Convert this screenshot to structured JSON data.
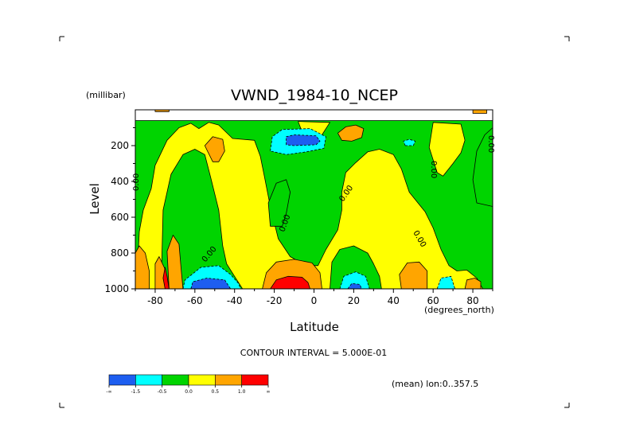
{
  "chart_data": {
    "type": "heatmap",
    "title": "VWND_1984-10_NCEP",
    "xlabel": "Latitude",
    "ylabel": "Level",
    "y_units": "(millibar)",
    "x_units": "(degrees_north)",
    "x_ticks": [
      "-80",
      "-60",
      "-40",
      "-20",
      "0",
      "20",
      "40",
      "60",
      "80"
    ],
    "y_ticks": [
      "200",
      "400",
      "600",
      "800",
      "1000"
    ],
    "xlim": [
      -90,
      90
    ],
    "ylim": [
      1000,
      0
    ],
    "contour_interval_text": "CONTOUR INTERVAL = 5.000E-01",
    "mean_text": "(mean) lon:0..357.5",
    "contour_labels": [
      "0.00",
      "0.00",
      "0.00",
      "0.00",
      "0.00",
      "0.00",
      "0.00",
      "0.00"
    ],
    "colorbar": {
      "colors": [
        "#1d5ef0",
        "#00ffff",
        "#00d400",
        "#ffff00",
        "#ffa500",
        "#ff0000"
      ],
      "labels": [
        "-∞",
        "-1.5",
        "-0.5",
        "0.0",
        "0.5",
        "1.0",
        "∞"
      ]
    },
    "regions": [
      {
        "level": "green",
        "color": "#00d400",
        "ring": [
          [
            -90,
            1000
          ],
          [
            -90,
            60
          ],
          [
            90,
            60
          ],
          [
            90,
            1000
          ]
        ]
      },
      {
        "level": "yellow",
        "color": "#ffff00",
        "ring": [
          [
            -86,
            1000
          ],
          [
            -89,
            900
          ],
          [
            -88,
            680
          ],
          [
            -86,
            560
          ],
          [
            -82,
            440
          ],
          [
            -80,
            310
          ],
          [
            -74,
            170
          ],
          [
            -68,
            100
          ],
          [
            -62,
            75
          ],
          [
            -58,
            105
          ],
          [
            -53,
            70
          ],
          [
            -48,
            85
          ],
          [
            -41,
            160
          ],
          [
            -30,
            170
          ],
          [
            -27,
            260
          ],
          [
            -25,
            370
          ],
          [
            -22,
            540
          ],
          [
            -18,
            720
          ],
          [
            -12,
            820
          ],
          [
            -4,
            870
          ],
          [
            2,
            870
          ],
          [
            6,
            780
          ],
          [
            12,
            670
          ],
          [
            14,
            560
          ],
          [
            14,
            460
          ],
          [
            16,
            350
          ],
          [
            21,
            295
          ],
          [
            27,
            235
          ],
          [
            33,
            220
          ],
          [
            40,
            250
          ],
          [
            44,
            330
          ],
          [
            48,
            460
          ],
          [
            56,
            570
          ],
          [
            60,
            660
          ],
          [
            64,
            780
          ],
          [
            68,
            870
          ],
          [
            72,
            900
          ],
          [
            77,
            895
          ],
          [
            82,
            940
          ],
          [
            85,
            1000
          ]
        ]
      },
      {
        "level": "yellow",
        "color": "#ffff00",
        "ring": [
          [
            -8,
            65
          ],
          [
            -5,
            150
          ],
          [
            4,
            140
          ],
          [
            8,
            70
          ]
        ]
      },
      {
        "level": "yellow",
        "color": "#ffff00",
        "ring": [
          [
            60,
            70
          ],
          [
            58,
            210
          ],
          [
            62,
            350
          ],
          [
            65,
            370
          ],
          [
            70,
            300
          ],
          [
            74,
            240
          ],
          [
            76,
            170
          ],
          [
            74,
            80
          ]
        ]
      },
      {
        "level": "green",
        "color": "#00d400",
        "ring": [
          [
            -77,
            1000
          ],
          [
            -76,
            560
          ],
          [
            -72,
            360
          ],
          [
            -66,
            250
          ],
          [
            -60,
            220
          ],
          [
            -55,
            250
          ],
          [
            -52,
            380
          ],
          [
            -48,
            560
          ],
          [
            -46,
            760
          ],
          [
            -44,
            860
          ],
          [
            -40,
            930
          ],
          [
            -36,
            1000
          ]
        ]
      },
      {
        "level": "green",
        "color": "#00d400",
        "ring": [
          [
            -22,
            650
          ],
          [
            -23,
            520
          ],
          [
            -19,
            410
          ],
          [
            -14,
            390
          ],
          [
            -12,
            460
          ],
          [
            -14,
            580
          ],
          [
            -16,
            650
          ]
        ]
      },
      {
        "level": "green",
        "color": "#00d400",
        "ring": [
          [
            8,
            1000
          ],
          [
            9,
            850
          ],
          [
            13,
            780
          ],
          [
            20,
            760
          ],
          [
            27,
            800
          ],
          [
            30,
            860
          ],
          [
            33,
            930
          ],
          [
            34,
            1000
          ]
        ]
      },
      {
        "level": "green",
        "color": "#00d400",
        "ring": [
          [
            82,
            520
          ],
          [
            80,
            390
          ],
          [
            82,
            230
          ],
          [
            86,
            140
          ],
          [
            90,
            100
          ],
          [
            90,
            540
          ]
        ]
      },
      {
        "level": "orange",
        "color": "#ffa500",
        "ring": [
          [
            -90,
            1000
          ],
          [
            -90,
            800
          ],
          [
            -88,
            760
          ],
          [
            -85,
            800
          ],
          [
            -83,
            900
          ],
          [
            -83,
            1000
          ]
        ]
      },
      {
        "level": "orange",
        "color": "#ffa500",
        "ring": [
          [
            -80,
            1000
          ],
          [
            -80,
            860
          ],
          [
            -78,
            820
          ],
          [
            -75,
            890
          ],
          [
            -75,
            1000
          ]
        ]
      },
      {
        "level": "orange",
        "color": "#ffa500",
        "ring": [
          [
            -73,
            1000
          ],
          [
            -74,
            790
          ],
          [
            -71,
            700
          ],
          [
            -68,
            750
          ],
          [
            -67,
            880
          ],
          [
            -66,
            1000
          ]
        ]
      },
      {
        "level": "orange",
        "color": "#ffa500",
        "ring": [
          [
            -26,
            1000
          ],
          [
            -24,
            910
          ],
          [
            -19,
            850
          ],
          [
            -10,
            835
          ],
          [
            -1,
            855
          ],
          [
            3,
            910
          ],
          [
            4,
            1000
          ]
        ]
      },
      {
        "level": "orange",
        "color": "#ffa500",
        "ring": [
          [
            44,
            1000
          ],
          [
            43,
            920
          ],
          [
            47,
            855
          ],
          [
            53,
            850
          ],
          [
            57,
            900
          ],
          [
            57,
            1000
          ]
        ]
      },
      {
        "level": "orange",
        "color": "#ffa500",
        "ring": [
          [
            -51,
            290
          ],
          [
            -55,
            200
          ],
          [
            -51,
            150
          ],
          [
            -46,
            165
          ],
          [
            -45,
            230
          ],
          [
            -48,
            290
          ]
        ]
      },
      {
        "level": "orange",
        "color": "#ffa500",
        "ring": [
          [
            12,
            130
          ],
          [
            16,
            95
          ],
          [
            21,
            85
          ],
          [
            25,
            105
          ],
          [
            24,
            155
          ],
          [
            19,
            175
          ],
          [
            14,
            170
          ]
        ]
      },
      {
        "level": "orange",
        "color": "#ffa500",
        "ring": [
          [
            76,
            1000
          ],
          [
            77,
            950
          ],
          [
            81,
            940
          ],
          [
            84,
            960
          ],
          [
            84,
            1000
          ]
        ]
      },
      {
        "level": "orange",
        "color": "#ffa500",
        "ring": [
          [
            -80,
            10
          ],
          [
            -80,
            0
          ],
          [
            -73,
            0
          ],
          [
            -73,
            10
          ]
        ]
      },
      {
        "level": "orange",
        "color": "#ffa500",
        "ring": [
          [
            80,
            20
          ],
          [
            80,
            0
          ],
          [
            87,
            0
          ],
          [
            87,
            20
          ]
        ]
      },
      {
        "level": "red",
        "color": "#ff0000",
        "ring": [
          [
            -75,
            1000
          ],
          [
            -76,
            940
          ],
          [
            -75,
            880
          ],
          [
            -74,
            930
          ],
          [
            -73,
            1000
          ]
        ]
      },
      {
        "level": "red",
        "color": "#ff0000",
        "ring": [
          [
            -22,
            1000
          ],
          [
            -19,
            950
          ],
          [
            -13,
            930
          ],
          [
            -6,
            935
          ],
          [
            -3,
            965
          ],
          [
            -2,
            1000
          ]
        ]
      },
      {
        "level": "cyan",
        "color": "#00ffff",
        "ring": [
          [
            -66,
            1000
          ],
          [
            -65,
            950
          ],
          [
            -57,
            880
          ],
          [
            -48,
            870
          ],
          [
            -42,
            920
          ],
          [
            -38,
            970
          ],
          [
            -37,
            1000
          ]
        ]
      },
      {
        "level": "cyan",
        "color": "#00ffff",
        "ring": [
          [
            -22,
            230
          ],
          [
            -21,
            150
          ],
          [
            -16,
            110
          ],
          [
            -2,
            105
          ],
          [
            6,
            150
          ],
          [
            5,
            215
          ],
          [
            -4,
            235
          ],
          [
            -14,
            250
          ]
        ]
      },
      {
        "level": "cyan",
        "color": "#00ffff",
        "ring": [
          [
            13,
            1000
          ],
          [
            15,
            930
          ],
          [
            21,
            905
          ],
          [
            26,
            930
          ],
          [
            28,
            1000
          ]
        ]
      },
      {
        "level": "cyan",
        "color": "#00ffff",
        "ring": [
          [
            62,
            1000
          ],
          [
            64,
            940
          ],
          [
            69,
            930
          ],
          [
            71,
            1000
          ]
        ]
      },
      {
        "level": "cyan",
        "color": "#00ffff",
        "ring": [
          [
            46,
            200
          ],
          [
            45,
            175
          ],
          [
            48,
            165
          ],
          [
            51,
            175
          ],
          [
            50,
            200
          ]
        ]
      },
      {
        "level": "blue",
        "color": "#1d5ef0",
        "ring": [
          [
            -62,
            1000
          ],
          [
            -61,
            960
          ],
          [
            -54,
            940
          ],
          [
            -45,
            950
          ],
          [
            -42,
            1000
          ]
        ]
      },
      {
        "level": "blue",
        "color": "#1d5ef0",
        "ring": [
          [
            -14,
            195
          ],
          [
            -14,
            150
          ],
          [
            -10,
            140
          ],
          [
            1,
            145
          ],
          [
            3,
            175
          ],
          [
            1,
            195
          ],
          [
            -10,
            200
          ]
        ]
      },
      {
        "level": "blue",
        "color": "#1d5ef0",
        "ring": [
          [
            17,
            1000
          ],
          [
            19,
            970
          ],
          [
            23,
            975
          ],
          [
            24,
            1000
          ]
        ]
      }
    ]
  }
}
